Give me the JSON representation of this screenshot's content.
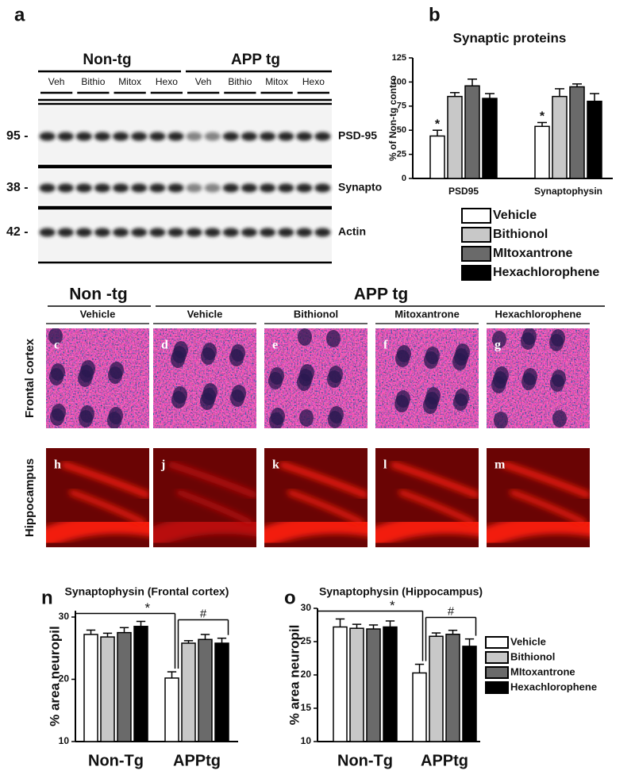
{
  "panel_labels": [
    "a",
    "b",
    "n",
    "o"
  ],
  "blot": {
    "groups": [
      "Non-tg",
      "APP tg"
    ],
    "lanes": [
      "Veh",
      "Bithio",
      "Mitox",
      "Hexo",
      "Veh",
      "Bithio",
      "Mitox",
      "Hexo"
    ],
    "markers": [
      "95 -",
      "38 -",
      "42 -"
    ],
    "proteins": [
      "PSD-95",
      "Synapto",
      "Actin"
    ]
  },
  "micrographs": {
    "groups": [
      "Non -tg",
      "APP tg"
    ],
    "columns": [
      "Vehicle",
      "Vehicle",
      "Bithionol",
      "Mitoxantrone",
      "Hexachlorophene"
    ],
    "rows": [
      "Frontal cortex",
      "Hippocampus"
    ],
    "panels": [
      [
        "c",
        "d",
        "e",
        "f",
        "g"
      ],
      [
        "h",
        "j",
        "k",
        "l",
        "m"
      ]
    ]
  },
  "chart_data": [
    {
      "type": "bar",
      "title": "Synaptic proteins",
      "y_label": "% of Non-tg contro",
      "categories": [
        "PSD95",
        "Synaptophysin"
      ],
      "series": [
        {
          "name": "Vehicle",
          "color": "#ffffff",
          "values": [
            44,
            54
          ],
          "errors": [
            6,
            4
          ]
        },
        {
          "name": "Bithionol",
          "color": "#c8c8c8",
          "values": [
            85,
            85
          ],
          "errors": [
            4,
            8
          ]
        },
        {
          "name": "MItoxantrone",
          "color": "#6a6a6a",
          "values": [
            96,
            95
          ],
          "errors": [
            7,
            3
          ]
        },
        {
          "name": "Hexachlorophene",
          "color": "#000000",
          "values": [
            83,
            80
          ],
          "errors": [
            5,
            8
          ]
        }
      ],
      "ylim": [
        0,
        125
      ],
      "yticks": [
        0,
        25,
        50,
        75,
        100,
        125
      ],
      "grid": false,
      "legend": "bottom",
      "annotations": [
        "*",
        "*"
      ]
    },
    {
      "type": "bar",
      "title": "Synaptophysin (Frontal cortex)",
      "y_label": "% area neuropil",
      "categories": [
        "Non-Tg",
        "APPtg"
      ],
      "series": [
        {
          "color": "#ffffff",
          "values": [
            27.2,
            20.2
          ],
          "errors": [
            0.7,
            1.0
          ]
        },
        {
          "color": "#c8c8c8",
          "values": [
            26.8,
            25.8
          ],
          "errors": [
            0.6,
            0.4
          ]
        },
        {
          "color": "#6a6a6a",
          "values": [
            27.5,
            26.4
          ],
          "errors": [
            0.8,
            0.8
          ]
        },
        {
          "color": "#000000",
          "values": [
            28.5,
            25.8
          ],
          "errors": [
            0.8,
            0.8
          ]
        }
      ],
      "ylim": [
        10,
        31
      ],
      "yticks": [
        10,
        20,
        30
      ],
      "grid": false,
      "legend": "none",
      "annotations": [
        "*",
        "#"
      ]
    },
    {
      "type": "bar",
      "title": "Synaptophysin (Hippocampus)",
      "y_label": "% area neuropil",
      "categories": [
        "Non-Tg",
        "APPtg"
      ],
      "series": [
        {
          "name": "Vehicle",
          "color": "#ffffff",
          "values": [
            27.2,
            20.3
          ],
          "errors": [
            1.2,
            1.3
          ]
        },
        {
          "name": "Bithionol",
          "color": "#c8c8c8",
          "values": [
            27.0,
            25.8
          ],
          "errors": [
            0.6,
            0.5
          ]
        },
        {
          "name": "MItoxantrone",
          "color": "#6a6a6a",
          "values": [
            26.9,
            26.1
          ],
          "errors": [
            0.6,
            0.6
          ]
        },
        {
          "name": "Hexachlorophene",
          "color": "#000000",
          "values": [
            27.2,
            24.3
          ],
          "errors": [
            0.9,
            1.1
          ]
        }
      ],
      "ylim": [
        10,
        30
      ],
      "yticks": [
        10,
        15,
        20,
        25,
        30
      ],
      "grid": false,
      "legend": "right",
      "annotations": [
        "*",
        "#"
      ]
    }
  ]
}
